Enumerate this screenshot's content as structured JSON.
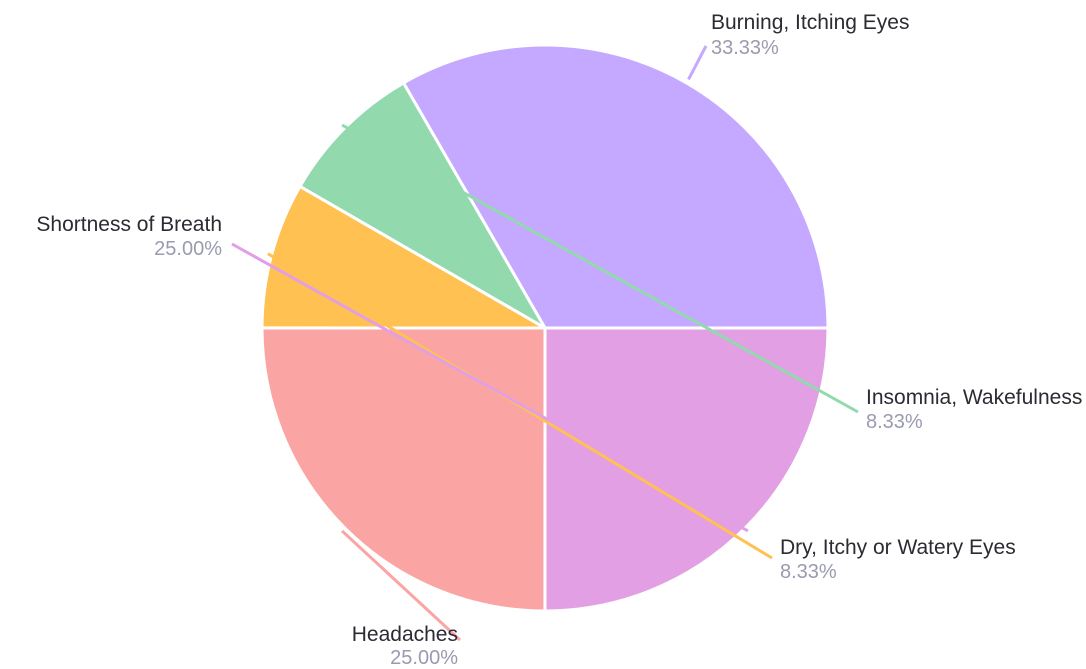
{
  "chart_data": {
    "type": "pie",
    "title": "",
    "series": [
      {
        "values": [
          33.33,
          8.33,
          8.33,
          25.0,
          25.0
        ]
      }
    ],
    "categories": [
      "Burning, Itching Eyes",
      "Insomnia, Wakefulness",
      "Dry, Itchy or Watery Eyes",
      "Headaches",
      "Shortness of Breath"
    ],
    "slices": [
      {
        "label": "Burning, Itching Eyes",
        "value": 33.33,
        "value_label": "33.33%",
        "color": "#c5a8ff"
      },
      {
        "label": "Insomnia, Wakefulness",
        "value": 8.33,
        "value_label": "8.33%",
        "color": "#93d9ae"
      },
      {
        "label": "Dry, Itchy or Watery Eyes",
        "value": 8.33,
        "value_label": "8.33%",
        "color": "#ffc152"
      },
      {
        "label": "Headaches",
        "value": 25.0,
        "value_label": "25.00%",
        "color": "#fba4a4"
      },
      {
        "label": "Shortness of Breath",
        "value": 25.0,
        "value_label": "25.00%",
        "color": "#e29fe3"
      }
    ],
    "legend": "none"
  }
}
